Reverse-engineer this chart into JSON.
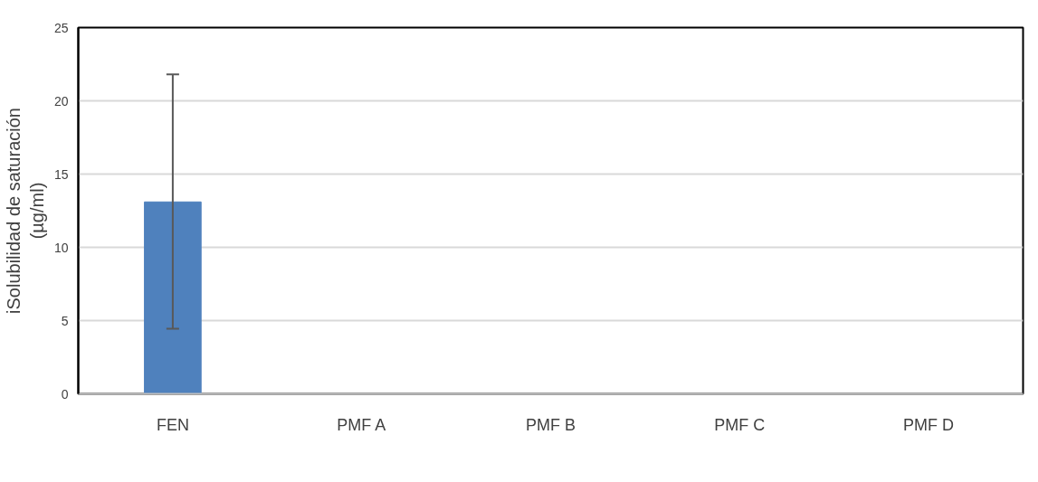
{
  "chart_data": {
    "type": "bar",
    "ylabel": "iSolubilidad de saturación\n(µg/ml)",
    "categories": [
      "FEN",
      "PMF A",
      "PMF B",
      "PMF C",
      "PMF D"
    ],
    "values": [
      13.1,
      0,
      0,
      0,
      0
    ],
    "errors": [
      [
        4.45,
        21.8
      ],
      null,
      null,
      null,
      null
    ],
    "color": "#4f81bd",
    "ylim": [
      0,
      25
    ],
    "yticks": [
      0,
      5,
      10,
      15,
      20,
      25
    ],
    "grid": "y"
  }
}
